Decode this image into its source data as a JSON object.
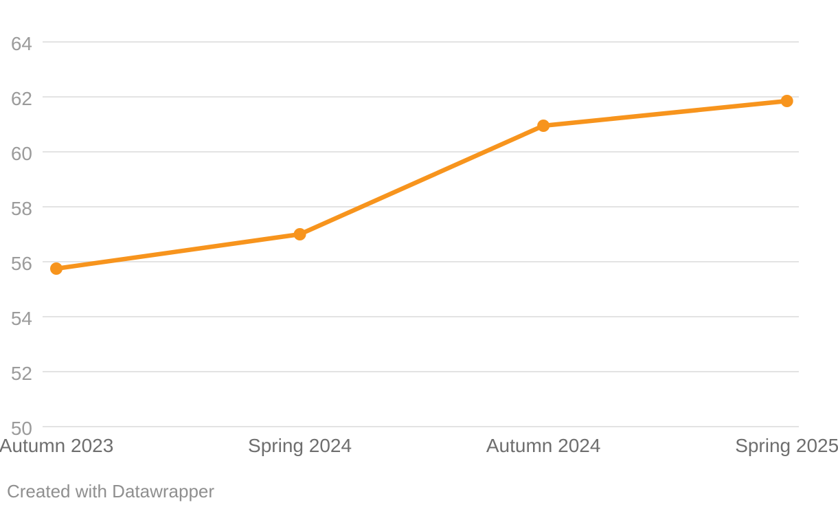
{
  "chart_data": {
    "type": "line",
    "title": "",
    "categories": [
      "Autumn 2023",
      "Spring 2024",
      "Autumn 2024",
      "Spring 2025"
    ],
    "series": [
      {
        "name": "value",
        "values": [
          55.75,
          57.0,
          60.95,
          61.85
        ]
      }
    ],
    "xlabel": "",
    "ylabel": "",
    "ylim": [
      50,
      64.5
    ],
    "y_ticks": [
      64,
      62,
      60,
      58,
      56,
      54,
      52,
      50
    ],
    "grid": "horizontal-only",
    "legend": "none",
    "marker": "circle"
  },
  "colors": {
    "line": "#F7941D",
    "marker": "#F7941D",
    "gridline": "#E3E3E3",
    "y_tick_label": "#9B9B9B",
    "x_tick_label": "#6E6E6E",
    "attribution_text": "#8F8F8F",
    "background": "#FFFFFF"
  },
  "footer": {
    "attribution": "Created with Datawrapper"
  }
}
